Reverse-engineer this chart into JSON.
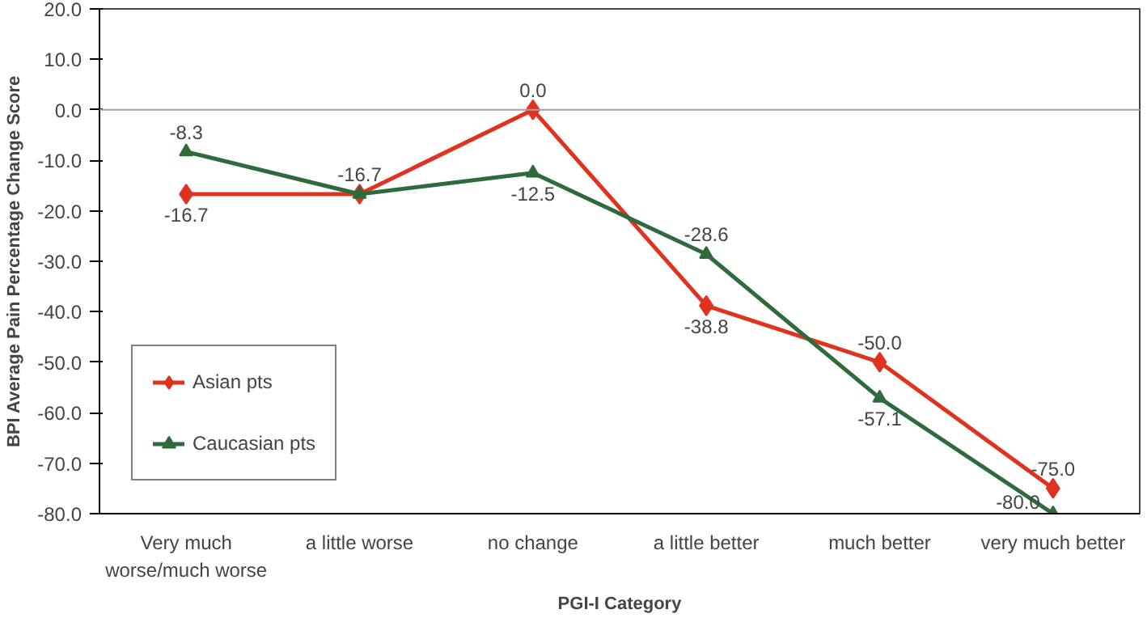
{
  "chart_data": {
    "type": "line",
    "xlabel": "PGI-I Category",
    "ylabel": "BPI Average Pain Percentage Change Score",
    "categories": [
      "Very much worse/much worse",
      "a little worse",
      "no change",
      "a little better",
      "much better",
      "very much better"
    ],
    "series": [
      {
        "name": "Asian pts",
        "color": "#e0321e",
        "marker": "diamond",
        "values": [
          -16.7,
          -16.7,
          0.0,
          -38.8,
          -50.0,
          -75.0
        ],
        "value_labels": [
          "-16.7",
          "-16.7",
          "0.0",
          "-38.8",
          "-50.0",
          "-75.0"
        ]
      },
      {
        "name": "Caucasian pts",
        "color": "#2e6b3c",
        "marker": "triangle",
        "values": [
          -8.3,
          -16.7,
          -12.5,
          -28.6,
          -57.1,
          -80.0
        ],
        "value_labels": [
          "-8.3",
          null,
          "-12.5",
          "-28.6",
          "-57.1",
          "-80.0"
        ]
      }
    ],
    "ylim": [
      -80,
      20
    ],
    "yticks": [
      {
        "value": -80,
        "label": "-80.0"
      },
      {
        "value": -70,
        "label": "-70.0"
      },
      {
        "value": -60,
        "label": "-60.0"
      },
      {
        "value": -50,
        "label": "-50.0"
      },
      {
        "value": -40,
        "label": "-40.0"
      },
      {
        "value": -30,
        "label": "-30.0"
      },
      {
        "value": -20,
        "label": "-20.0"
      },
      {
        "value": -10,
        "label": "-10.0"
      },
      {
        "value": 0,
        "label": "0.0"
      },
      {
        "value": 10,
        "label": "10.0"
      },
      {
        "value": 20,
        "label": "20.0"
      }
    ],
    "ref_lines": [
      {
        "axis": "y",
        "value": 0,
        "color": "#a0a0a0"
      }
    ],
    "grid": false,
    "legend": "bottom left"
  }
}
